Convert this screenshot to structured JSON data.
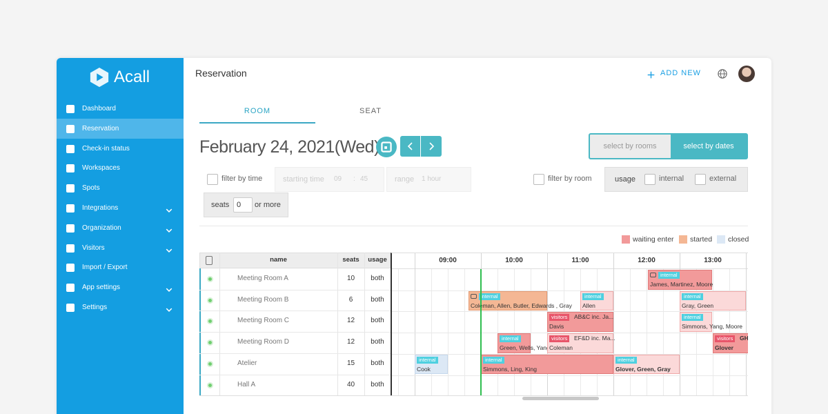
{
  "sidebar": {
    "logo": "Acall",
    "menu": [
      "Dashboard",
      "Reservation",
      "Check-in status",
      "Workspaces",
      "Spots",
      "Integrations",
      "Organization",
      "Visitors",
      "Import / Export",
      "App settings",
      "Settings"
    ]
  },
  "header": {
    "title": "Reservation",
    "add_new": "ADD NEW"
  },
  "tabs": [
    "ROOM",
    "SEAT"
  ],
  "date": "February 24, 2021(Wed)",
  "view_toggle": [
    "select by rooms",
    "select by dates"
  ],
  "filters": {
    "filter_by_time": "filter by time",
    "starting_time": "starting time",
    "hour": "09",
    "time_separator": ":",
    "minute": "45",
    "range": "range",
    "range_value": "1 hour",
    "filter_by_room": "filter by room",
    "usage": "usage",
    "internal": "internal",
    "external": "external",
    "seats": "seats",
    "seats_value": "0",
    "or_more": "or more"
  },
  "legend": [
    "waiting enter",
    "started",
    "closed"
  ],
  "table": {
    "headers": [
      "name",
      "seats",
      "usage"
    ],
    "hours": [
      "09:00",
      "10:00",
      "11:00",
      "12:00",
      "13:00"
    ],
    "rooms": [
      {
        "name": "Meeting Room A",
        "seats": 10,
        "usage": "both"
      },
      {
        "name": "Meeting Room B",
        "seats": 6,
        "usage": "both"
      },
      {
        "name": "Meeting Room C",
        "seats": 12,
        "usage": "both"
      },
      {
        "name": "Meeting Room D",
        "seats": 12,
        "usage": "both"
      },
      {
        "name": "Atelier",
        "seats": 15,
        "usage": "both"
      },
      {
        "name": "Hall A",
        "seats": 40,
        "usage": "both"
      }
    ]
  },
  "reservations": [
    {
      "tag": "internal",
      "names": "James, Martinez, Moore"
    },
    {
      "tag": "internal",
      "names": "Coleman, Allen, Butler, Edwards , Gray"
    },
    {
      "tag": "internal",
      "names": "Allen"
    },
    {
      "tag": "internal",
      "names": "Gray, Green"
    },
    {
      "tag": "visitors",
      "title": "AB&C inc. Ja...",
      "names": "Davis"
    },
    {
      "tag": "internal",
      "names": "Simmons, Yang, Moore"
    },
    {
      "tag": "internal",
      "names": "Green, Wells, Yang"
    },
    {
      "tag": "visitors",
      "title": "EF&D inc. Ma...",
      "names": "Coleman"
    },
    {
      "tag": "visitors",
      "title": "GH&",
      "names": "Glover"
    },
    {
      "tag": "internal",
      "names": "Cook"
    },
    {
      "tag": "internal",
      "names": "Simmons, Ling, King"
    },
    {
      "tag": "internal",
      "names": "Glover, Green, Gray"
    }
  ]
}
